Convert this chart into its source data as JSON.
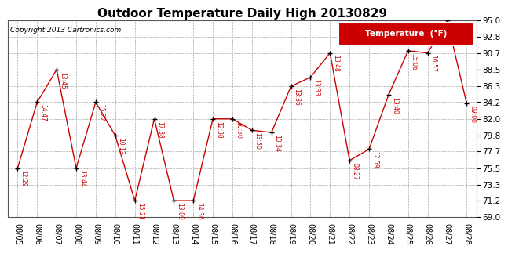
{
  "title": "Outdoor Temperature Daily High 20130829",
  "copyright": "Copyright 2013 Cartronics.com",
  "legend_label": "Temperature  (°F)",
  "dates": [
    "08/05",
    "08/06",
    "08/07",
    "08/08",
    "08/09",
    "08/10",
    "08/11",
    "08/12",
    "08/13",
    "08/14",
    "08/15",
    "08/16",
    "08/17",
    "08/18",
    "08/19",
    "08/20",
    "08/21",
    "08/22",
    "08/23",
    "08/24",
    "08/25",
    "08/26",
    "08/27",
    "08/28"
  ],
  "temps": [
    75.5,
    84.2,
    88.5,
    75.5,
    84.2,
    79.8,
    71.2,
    82.0,
    71.2,
    71.2,
    82.0,
    82.0,
    80.5,
    80.2,
    86.3,
    87.5,
    90.7,
    76.5,
    78.0,
    85.2,
    91.0,
    90.7,
    95.0,
    84.0
  ],
  "time_labels": [
    "12:29",
    "14:47",
    "13:45",
    "13:44",
    "15:22",
    "10:13",
    "15:21",
    "17:38",
    "13:09",
    "14:36",
    "12:38",
    "10:50",
    "13:50",
    "10:34",
    "13:36",
    "13:33",
    "13:48",
    "08:27",
    "12:59",
    "13:40",
    "15:06",
    "16:57",
    "",
    "09:00"
  ],
  "line_color": "#cc0000",
  "marker_color": "#000000",
  "legend_bg": "#cc0000",
  "legend_text_color": "#ffffff",
  "bg_color": "#ffffff",
  "grid_color": "#aaaaaa",
  "title_color": "#000000",
  "annotation_color": "#cc0000",
  "ylim": [
    69.0,
    95.0
  ],
  "yticks": [
    69.0,
    71.2,
    73.3,
    75.5,
    77.7,
    79.8,
    82.0,
    84.2,
    86.3,
    88.5,
    90.7,
    92.8,
    95.0
  ]
}
